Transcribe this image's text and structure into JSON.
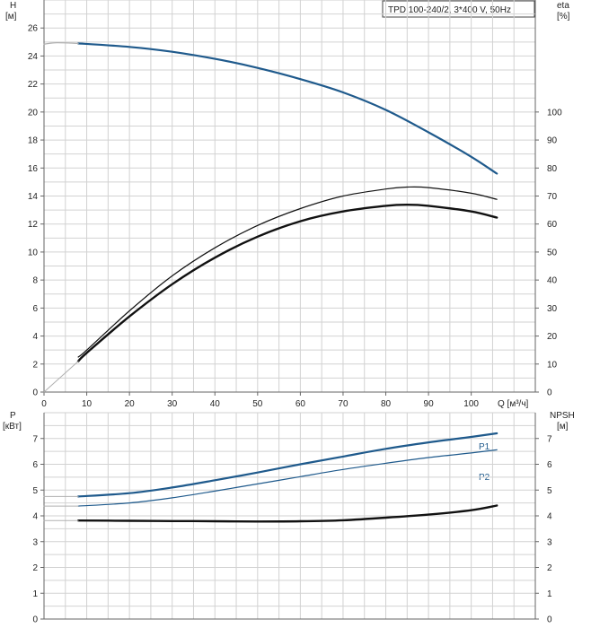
{
  "chart_data": [
    {
      "type": "line",
      "title": "TPD 100-240/2, 3*400 V, 50Hz",
      "left_axis": {
        "label": "H",
        "unit": "[м]",
        "range": [
          0,
          28
        ],
        "ticks": [
          0,
          2,
          4,
          6,
          8,
          10,
          12,
          14,
          16,
          18,
          20,
          22,
          24,
          26
        ]
      },
      "right_axis": {
        "label": "eta",
        "unit": "[%]",
        "range": [
          0,
          140
        ],
        "ticks": [
          0,
          10,
          20,
          30,
          40,
          50,
          60,
          70,
          80,
          90,
          100
        ]
      },
      "x_axis": {
        "label": "Q [м³/ч]",
        "range": [
          0,
          115
        ],
        "ticks": [
          0,
          10,
          20,
          30,
          40,
          50,
          60,
          70,
          80,
          90,
          100
        ]
      },
      "grid": true,
      "series": [
        {
          "axis": "left",
          "color": "#1f5a8c",
          "width": 2.2,
          "points": [
            [
              8,
              24.9
            ],
            [
              20,
              24.65
            ],
            [
              30,
              24.3
            ],
            [
              40,
              23.8
            ],
            [
              50,
              23.15
            ],
            [
              60,
              22.35
            ],
            [
              70,
              21.4
            ],
            [
              80,
              20.15
            ],
            [
              90,
              18.55
            ],
            [
              100,
              16.8
            ],
            [
              106,
              15.6
            ]
          ]
        },
        {
          "axis": "left",
          "color": "#b0b0b0",
          "width": 1.2,
          "points": [
            [
              0,
              24.85
            ],
            [
              3,
              24.95
            ],
            [
              8,
              24.9
            ]
          ]
        },
        {
          "axis": "right",
          "color": "#111111",
          "width": 1.2,
          "points": [
            [
              8,
              12.5
            ],
            [
              10,
              15
            ],
            [
              20,
              29
            ],
            [
              30,
              41.5
            ],
            [
              40,
              51.5
            ],
            [
              50,
              59.5
            ],
            [
              60,
              65.5
            ],
            [
              70,
              70
            ],
            [
              80,
              72.5
            ],
            [
              85,
              73.2
            ],
            [
              90,
              73
            ],
            [
              100,
              71
            ],
            [
              106,
              68.8
            ]
          ]
        },
        {
          "axis": "right",
          "color": "#111111",
          "width": 2.4,
          "points": [
            [
              8,
              11
            ],
            [
              10,
              14
            ],
            [
              20,
              27
            ],
            [
              30,
              38.5
            ],
            [
              40,
              48
            ],
            [
              50,
              55.5
            ],
            [
              60,
              61
            ],
            [
              70,
              64.5
            ],
            [
              80,
              66.5
            ],
            [
              85,
              66.9
            ],
            [
              90,
              66.5
            ],
            [
              100,
              64.5
            ],
            [
              106,
              62.3
            ]
          ]
        },
        {
          "axis": "right",
          "color": "#b0b0b0",
          "width": 1.0,
          "points": [
            [
              0,
              0
            ],
            [
              8,
              11
            ]
          ]
        }
      ]
    },
    {
      "type": "line",
      "left_axis": {
        "label": "P",
        "unit": "[кВт]",
        "range": [
          0,
          8
        ],
        "ticks": [
          0,
          1,
          2,
          3,
          4,
          5,
          6,
          7
        ]
      },
      "right_axis": {
        "label": "NPSH",
        "unit": "[м]",
        "range": [
          0,
          8
        ],
        "ticks": [
          0,
          1,
          2,
          3,
          4,
          5,
          6,
          7
        ]
      },
      "x_axis": {
        "range": [
          0,
          115
        ]
      },
      "grid": true,
      "series": [
        {
          "name": "P1",
          "axis": "left",
          "color": "#1f5a8c",
          "width": 2.2,
          "points": [
            [
              8,
              4.75
            ],
            [
              20,
              4.88
            ],
            [
              30,
              5.1
            ],
            [
              40,
              5.38
            ],
            [
              50,
              5.68
            ],
            [
              60,
              6.0
            ],
            [
              70,
              6.3
            ],
            [
              80,
              6.6
            ],
            [
              90,
              6.85
            ],
            [
              100,
              7.06
            ],
            [
              106,
              7.2
            ]
          ]
        },
        {
          "name": "P2",
          "axis": "left",
          "color": "#1f5a8c",
          "width": 1.2,
          "points": [
            [
              8,
              4.38
            ],
            [
              20,
              4.5
            ],
            [
              30,
              4.7
            ],
            [
              40,
              4.96
            ],
            [
              50,
              5.24
            ],
            [
              60,
              5.52
            ],
            [
              70,
              5.8
            ],
            [
              80,
              6.04
            ],
            [
              90,
              6.26
            ],
            [
              100,
              6.44
            ],
            [
              106,
              6.56
            ]
          ]
        },
        {
          "axis": "right",
          "color": "#111111",
          "width": 2.4,
          "points": [
            [
              8,
              3.82
            ],
            [
              20,
              3.81
            ],
            [
              30,
              3.8
            ],
            [
              40,
              3.79
            ],
            [
              50,
              3.78
            ],
            [
              60,
              3.79
            ],
            [
              70,
              3.83
            ],
            [
              80,
              3.93
            ],
            [
              90,
              4.05
            ],
            [
              100,
              4.22
            ],
            [
              106,
              4.4
            ]
          ]
        },
        {
          "axis": "left",
          "color": "#b0b0b0",
          "width": 1.0,
          "points": [
            [
              0,
              4.75
            ],
            [
              8,
              4.75
            ]
          ]
        },
        {
          "axis": "left",
          "color": "#b0b0b0",
          "width": 1.0,
          "points": [
            [
              0,
              4.38
            ],
            [
              8,
              4.38
            ]
          ]
        },
        {
          "axis": "right",
          "color": "#b0b0b0",
          "width": 1.0,
          "points": [
            [
              0,
              3.82
            ],
            [
              8,
              3.82
            ]
          ]
        }
      ]
    }
  ],
  "colors": {
    "grid": "#d2d2d2",
    "axis": "#666666",
    "accent": "#1f5a8c"
  }
}
